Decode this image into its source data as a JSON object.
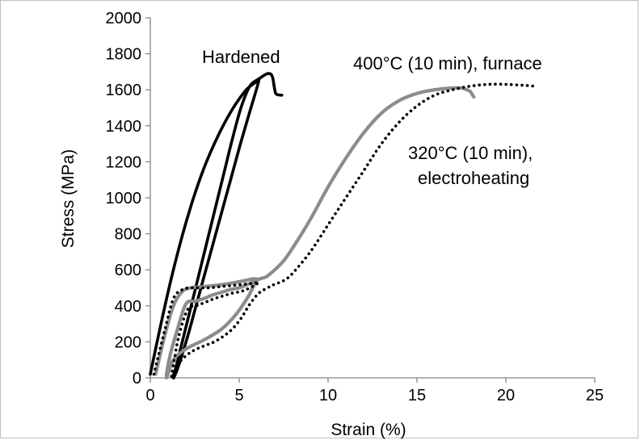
{
  "chart_data": {
    "type": "line",
    "title": "",
    "xlabel": "Strain (%)",
    "ylabel": "Stress (MPa)",
    "xlim": [
      0,
      25
    ],
    "ylim": [
      0,
      2000
    ],
    "xticks": [
      "0",
      "5",
      "10",
      "15",
      "20",
      "25"
    ],
    "yticks": [
      "0",
      "200",
      "400",
      "600",
      "800",
      "1000",
      "1200",
      "1400",
      "1600",
      "1800",
      "2000"
    ],
    "grid": false,
    "legend": "none",
    "annotations": [
      {
        "text": "Hardened",
        "series": "hardened"
      },
      {
        "text": "400°C (10 min), furnace",
        "series": "furnace"
      },
      {
        "text": "320°C (10 min),",
        "series": "electro"
      },
      {
        "text": "electroheating",
        "series": "electro"
      }
    ],
    "series": [
      {
        "key": "hardened",
        "color": "#000000",
        "style": "solid",
        "x": [
          0,
          0.6,
          1.2,
          1.8,
          2.4,
          3.0,
          3.6,
          4.2,
          4.8,
          5.4,
          5.9,
          6.1,
          5.6,
          5.1,
          4.6,
          4.1,
          3.6,
          3.1,
          2.6,
          2.1,
          1.6,
          1.3,
          1.6,
          2.1,
          2.6,
          3.1,
          3.6,
          4.1,
          4.6,
          5.1,
          5.6,
          6.1,
          6.4,
          6.6,
          6.8,
          6.9,
          7.0,
          7.1,
          7.4
        ],
        "y": [
          20,
          300,
          560,
          790,
          990,
          1160,
          1300,
          1420,
          1520,
          1600,
          1640,
          1650,
          1480,
          1310,
          1130,
          950,
          770,
          590,
          410,
          230,
          70,
          0,
          120,
          320,
          520,
          720,
          920,
          1120,
          1320,
          1500,
          1620,
          1660,
          1680,
          1690,
          1685,
          1660,
          1600,
          1575,
          1570
        ]
      },
      {
        "key": "furnace",
        "color": "#8c8c8c",
        "style": "solid",
        "x": [
          0.3,
          0.8,
          1.3,
          1.8,
          2.3,
          2.8,
          3.3,
          3.8,
          4.3,
          4.8,
          5.3,
          5.8,
          6.0,
          5.5,
          5.0,
          4.5,
          4.0,
          3.5,
          3.0,
          2.5,
          2.0,
          1.5,
          1.1,
          0.9,
          1.3,
          2.0,
          3.0,
          4.0,
          4.8,
          5.5,
          6.0,
          6.5,
          7.0,
          7.5,
          8.0,
          9.0,
          10.0,
          11.0,
          12.0,
          13.0,
          14.0,
          15.0,
          16.0,
          17.0,
          17.5,
          17.8,
          18.0,
          18.1,
          18.2
        ],
        "y": [
          20,
          230,
          400,
          480,
          500,
          505,
          510,
          515,
          522,
          530,
          540,
          550,
          545,
          520,
          500,
          490,
          475,
          460,
          440,
          425,
          410,
          260,
          120,
          0,
          100,
          160,
          210,
          270,
          350,
          450,
          540,
          560,
          600,
          650,
          720,
          880,
          1060,
          1220,
          1360,
          1470,
          1540,
          1580,
          1600,
          1610,
          1610,
          1600,
          1590,
          1575,
          1560
        ]
      },
      {
        "key": "electro",
        "color": "#000000",
        "style": "dotted",
        "x": [
          0.2,
          0.8,
          1.3,
          1.8,
          2.3,
          2.8,
          3.3,
          3.8,
          4.3,
          4.8,
          5.3,
          5.8,
          6.1,
          5.6,
          5.1,
          4.6,
          4.1,
          3.6,
          3.1,
          2.6,
          2.1,
          1.6,
          1.3,
          1.2,
          1.6,
          2.1,
          2.6,
          3.1,
          3.6,
          4.1,
          4.6,
          5.1,
          5.6,
          6.1,
          6.6,
          7.0,
          7.5,
          8.0,
          9.0,
          10.0,
          11.0,
          12.0,
          13.0,
          14.0,
          15.0,
          16.0,
          17.0,
          18.0,
          19.0,
          20.0,
          21.0,
          21.6
        ],
        "y": [
          20,
          260,
          440,
          490,
          500,
          500,
          500,
          505,
          510,
          515,
          520,
          525,
          530,
          500,
          480,
          470,
          455,
          440,
          420,
          400,
          380,
          230,
          70,
          0,
          80,
          130,
          160,
          180,
          200,
          230,
          270,
          330,
          410,
          470,
          500,
          520,
          540,
          580,
          700,
          850,
          1000,
          1150,
          1300,
          1420,
          1510,
          1570,
          1600,
          1620,
          1630,
          1630,
          1625,
          1620
        ]
      }
    ]
  }
}
